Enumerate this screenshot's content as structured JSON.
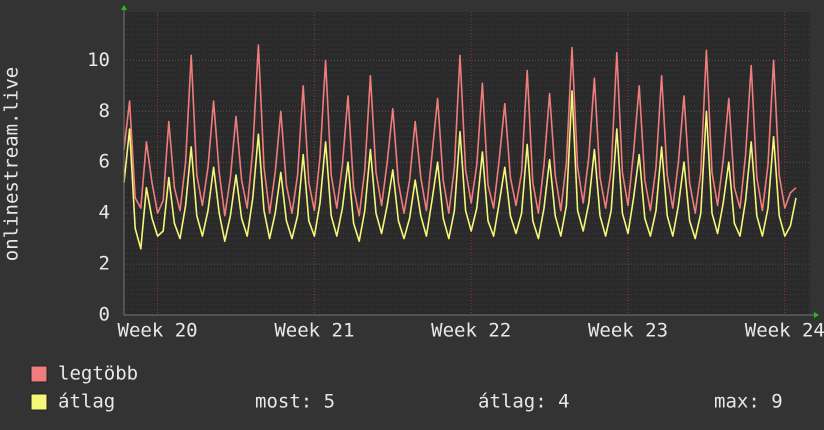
{
  "chart_data": {
    "type": "line",
    "y_label": "onlinestream.live",
    "categories": [
      null,
      null,
      null,
      null,
      null,
      null,
      "Week 20",
      null,
      null,
      null,
      null,
      null,
      null,
      null,
      null,
      null,
      null,
      null,
      null,
      null,
      null,
      null,
      null,
      null,
      null,
      null,
      null,
      null,
      null,
      null,
      null,
      null,
      null,
      null,
      "Week 21",
      null,
      null,
      null,
      null,
      null,
      null,
      null,
      null,
      null,
      null,
      null,
      null,
      null,
      null,
      null,
      null,
      null,
      null,
      null,
      null,
      null,
      null,
      null,
      null,
      null,
      null,
      null,
      "Week 22",
      null,
      null,
      null,
      null,
      null,
      null,
      null,
      null,
      null,
      null,
      null,
      null,
      null,
      null,
      null,
      null,
      null,
      null,
      null,
      null,
      null,
      null,
      null,
      null,
      null,
      null,
      null,
      "Week 23",
      null,
      null,
      null,
      null,
      null,
      null,
      null,
      null,
      null,
      null,
      null,
      null,
      null,
      null,
      null,
      null,
      null,
      null,
      null,
      null,
      null,
      null,
      null,
      null,
      null,
      null,
      null,
      "Week 24",
      null,
      null
    ],
    "series": [
      {
        "name": "legtöbb",
        "color": "#f07c7c",
        "values": [
          6.5,
          8.4,
          4.6,
          4.2,
          6.8,
          5.2,
          4.0,
          4.5,
          7.6,
          5.0,
          4.1,
          6.0,
          10.2,
          5.5,
          4.3,
          5.8,
          8.4,
          5.6,
          3.9,
          5.4,
          7.8,
          5.3,
          4.2,
          6.5,
          10.6,
          5.8,
          4.0,
          5.6,
          8.0,
          5.1,
          4.0,
          5.5,
          9.0,
          5.2,
          4.1,
          6.2,
          10.0,
          5.5,
          4.2,
          5.9,
          8.6,
          5.0,
          3.9,
          5.7,
          9.4,
          5.6,
          4.3,
          6.0,
          8.1,
          5.2,
          4.0,
          5.3,
          7.6,
          5.4,
          4.1,
          6.3,
          8.5,
          5.3,
          4.0,
          5.8,
          10.2,
          5.7,
          4.4,
          5.9,
          9.1,
          5.1,
          4.2,
          6.1,
          8.3,
          5.4,
          4.3,
          5.6,
          9.6,
          5.2,
          4.0,
          5.9,
          8.7,
          5.5,
          4.1,
          6.0,
          10.5,
          5.8,
          4.4,
          6.2,
          9.3,
          5.4,
          4.2,
          5.7,
          10.3,
          5.6,
          4.3,
          6.4,
          9.0,
          5.3,
          4.1,
          5.8,
          9.4,
          5.5,
          4.2,
          6.0,
          8.6,
          5.2,
          4.0,
          5.6,
          10.4,
          5.6,
          4.3,
          6.1,
          8.5,
          5.0,
          4.2,
          6.3,
          9.8,
          5.4,
          4.1,
          5.9,
          10.0,
          5.5,
          4.2,
          4.8,
          5.0
        ]
      },
      {
        "name": "átlag",
        "color": "#f6f67a",
        "values": [
          5.2,
          7.3,
          3.4,
          2.6,
          5.0,
          3.8,
          3.1,
          3.3,
          5.4,
          3.6,
          3.0,
          4.3,
          6.6,
          3.9,
          3.1,
          4.1,
          5.8,
          4.0,
          2.9,
          3.9,
          5.5,
          3.8,
          3.1,
          4.6,
          7.1,
          4.1,
          3.0,
          4.0,
          5.6,
          3.7,
          3.0,
          3.9,
          6.3,
          3.7,
          3.1,
          4.4,
          6.8,
          3.9,
          3.1,
          4.2,
          6.0,
          3.6,
          2.9,
          4.1,
          6.5,
          4.0,
          3.2,
          4.3,
          5.7,
          3.7,
          3.0,
          3.8,
          5.3,
          3.9,
          3.1,
          4.5,
          6.0,
          3.8,
          3.0,
          4.1,
          7.2,
          4.1,
          3.3,
          4.2,
          6.4,
          3.7,
          3.1,
          4.4,
          5.8,
          3.9,
          3.2,
          4.0,
          6.7,
          3.7,
          3.0,
          4.2,
          6.1,
          3.9,
          3.1,
          4.3,
          8.8,
          4.1,
          3.3,
          4.4,
          6.5,
          3.9,
          3.1,
          4.1,
          7.3,
          4.0,
          3.2,
          4.6,
          6.3,
          3.8,
          3.1,
          4.1,
          6.6,
          3.9,
          3.1,
          4.3,
          6.0,
          3.7,
          3.0,
          4.0,
          8.0,
          4.0,
          3.2,
          4.4,
          6.0,
          3.6,
          3.1,
          4.5,
          6.8,
          3.9,
          3.1,
          4.2,
          7.0,
          3.9,
          3.1,
          3.5,
          4.6
        ]
      }
    ],
    "stats": [
      "most: 5",
      "átlag: 4",
      "max: 9"
    ],
    "ylim": [
      0,
      11.9
    ],
    "yticks": [
      0,
      2,
      4,
      6,
      8,
      10
    ],
    "grid": true
  }
}
